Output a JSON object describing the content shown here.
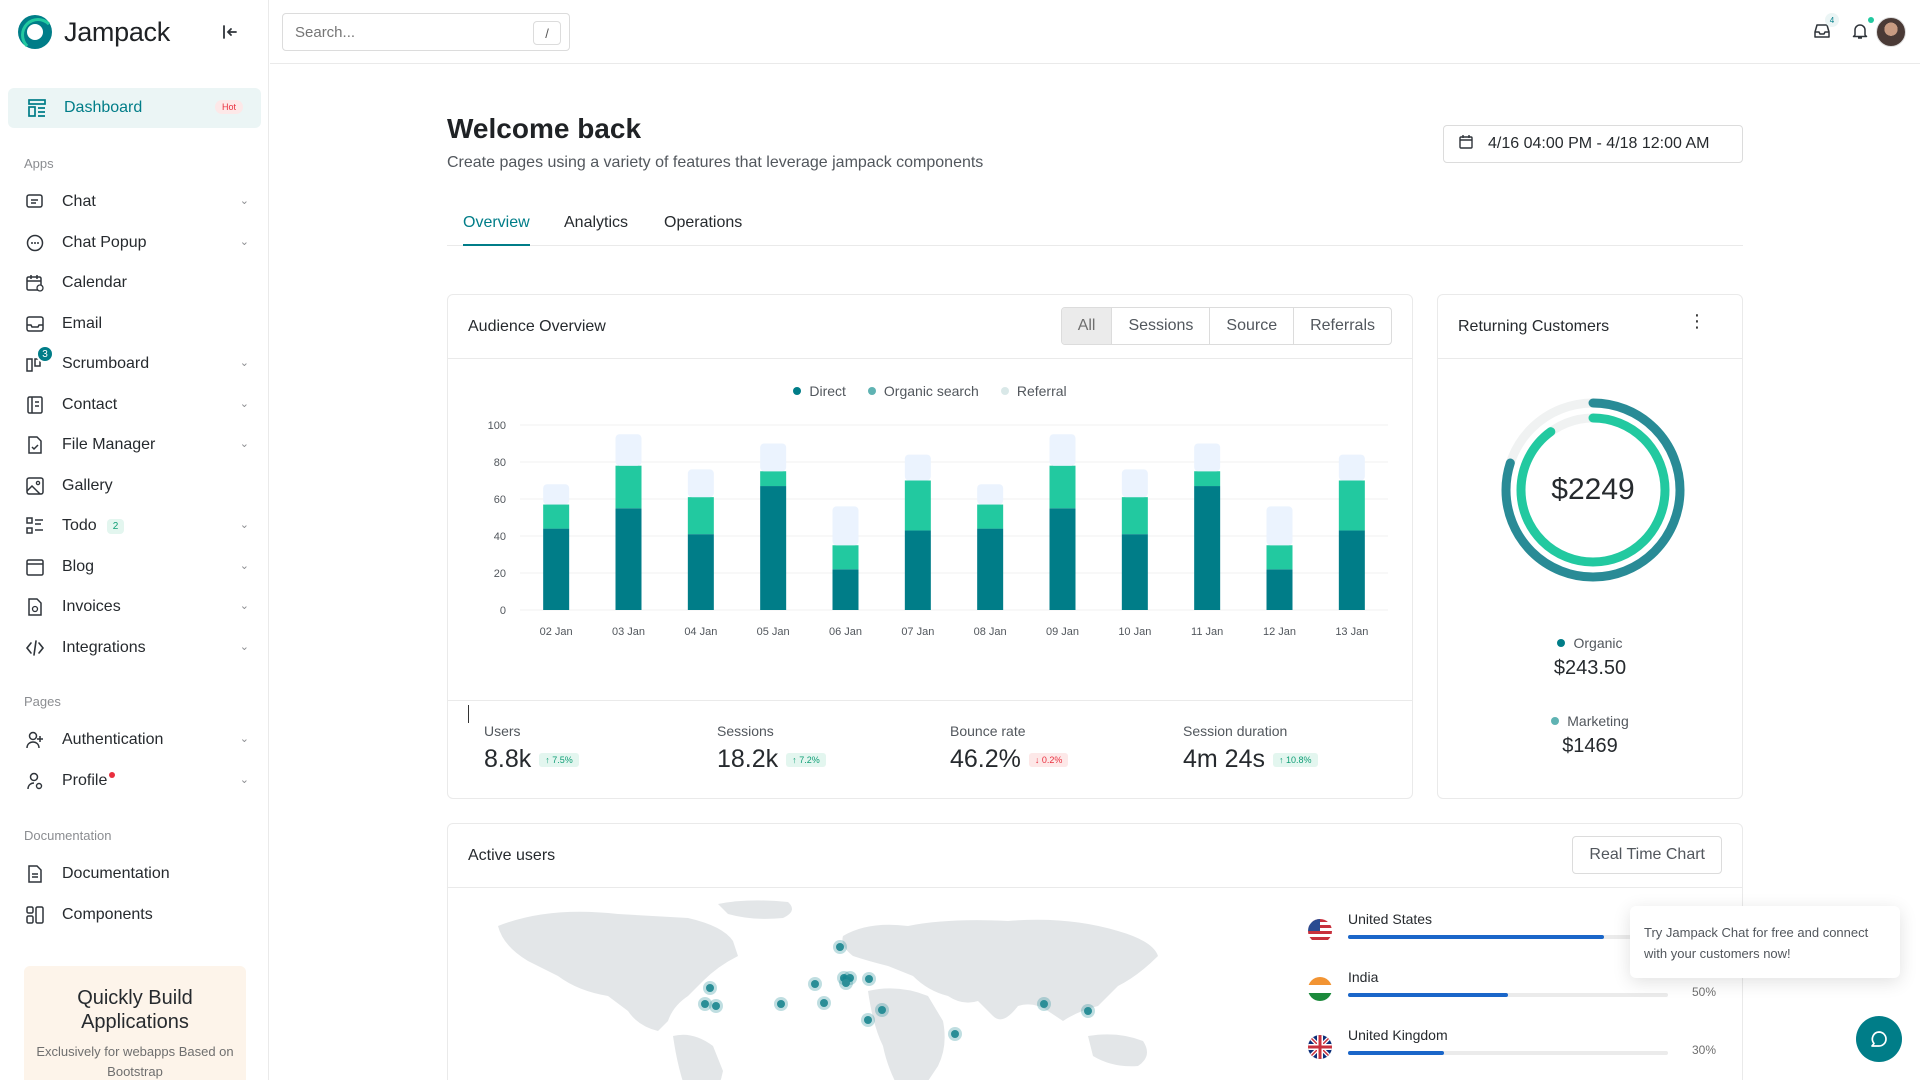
{
  "brand": {
    "name": "Jampack"
  },
  "sidebar": {
    "active": {
      "label": "Dashboard",
      "badge": "Hot"
    },
    "sections": {
      "apps": "Apps",
      "pages": "Pages",
      "documentation": "Documentation"
    },
    "apps": [
      {
        "label": "Chat",
        "icon": "chat-icon",
        "chevron": true
      },
      {
        "label": "Chat Popup",
        "icon": "chat-popup-icon",
        "chevron": true
      },
      {
        "label": "Calendar",
        "icon": "calendar-icon",
        "chevron": false
      },
      {
        "label": "Email",
        "icon": "email-icon",
        "chevron": false
      },
      {
        "label": "Scrumboard",
        "icon": "scrumboard-icon",
        "chevron": true,
        "icon_badge": "3"
      },
      {
        "label": "Contact",
        "icon": "contact-icon",
        "chevron": true
      },
      {
        "label": "File Manager",
        "icon": "file-manager-icon",
        "chevron": true
      },
      {
        "label": "Gallery",
        "icon": "gallery-icon",
        "chevron": false
      },
      {
        "label": "Todo",
        "icon": "todo-icon",
        "chevron": true,
        "count": "2"
      },
      {
        "label": "Blog",
        "icon": "blog-icon",
        "chevron": true
      },
      {
        "label": "Invoices",
        "icon": "invoices-icon",
        "chevron": true
      },
      {
        "label": "Integrations",
        "icon": "integrations-icon",
        "chevron": true
      }
    ],
    "pages": [
      {
        "label": "Authentication",
        "icon": "user-plus-icon",
        "chevron": true
      },
      {
        "label": "Profile",
        "icon": "profile-icon",
        "chevron": true,
        "dot": true
      }
    ],
    "docs": [
      {
        "label": "Documentation",
        "icon": "documentation-icon"
      },
      {
        "label": "Components",
        "icon": "components-icon"
      }
    ],
    "promo": {
      "title": "Quickly Build Applications",
      "subtitle": "Exclusively for webapps Based on Bootstrap"
    }
  },
  "topbar": {
    "search_placeholder": "Search...",
    "search_shortcut": "/",
    "inbox_badge": "4"
  },
  "header": {
    "title": "Welcome back",
    "subtitle": "Create pages using a variety of features that leverage jampack components",
    "date_range": "4/16 04:00 PM - 4/18 12:00 AM"
  },
  "tabs": [
    "Overview",
    "Analytics",
    "Operations"
  ],
  "audience": {
    "title": "Audience Overview",
    "filters": [
      "All",
      "Sessions",
      "Source",
      "Referrals"
    ],
    "legend": [
      {
        "name": "Direct",
        "color": "#007d88"
      },
      {
        "name": "Organic search",
        "color": "#22c9a0"
      },
      {
        "name": "Referral",
        "color": "#ebf3fe"
      }
    ],
    "stats": [
      {
        "label": "Users",
        "value": "8.8k",
        "delta": "7.5%",
        "dir": "up"
      },
      {
        "label": "Sessions",
        "value": "18.2k",
        "delta": "7.2%",
        "dir": "up"
      },
      {
        "label": "Bounce rate",
        "value": "46.2%",
        "delta": "0.2%",
        "dir": "down"
      },
      {
        "label": "Session duration",
        "value": "4m 24s",
        "delta": "10.8%",
        "dir": "up"
      }
    ]
  },
  "chart_data": {
    "type": "bar",
    "stacked": true,
    "categories": [
      "02 Jan",
      "03 Jan",
      "04 Jan",
      "05 Jan",
      "06 Jan",
      "07 Jan",
      "08 Jan",
      "09 Jan",
      "10 Jan",
      "11 Jan",
      "12 Jan",
      "13 Jan"
    ],
    "series": [
      {
        "name": "Direct",
        "values": [
          44,
          55,
          41,
          67,
          22,
          43,
          44,
          55,
          41,
          67,
          22,
          43
        ],
        "color": "#007d88"
      },
      {
        "name": "Organic search",
        "values": [
          13,
          23,
          20,
          8,
          13,
          27,
          13,
          23,
          20,
          8,
          13,
          27
        ],
        "color": "#22c9a0"
      },
      {
        "name": "Referral",
        "values": [
          11,
          17,
          15,
          15,
          21,
          14,
          11,
          17,
          15,
          15,
          21,
          14
        ],
        "color": "#ebf3fe"
      }
    ],
    "yticks": [
      0,
      20,
      40,
      60,
      80,
      100
    ],
    "ylim": [
      0,
      100
    ],
    "grid": true,
    "legend": "top-center"
  },
  "returning": {
    "title": "Returning Customers",
    "total": "$2249",
    "items": [
      {
        "label": "Organic",
        "value": "$243.50",
        "color": "#007d88"
      },
      {
        "label": "Marketing",
        "value": "$1469",
        "color": "#5fb3b3"
      }
    ],
    "rings": [
      {
        "name": "Organic",
        "fraction": 0.8,
        "color": "#22c9a0"
      },
      {
        "name": "Marketing",
        "fraction": 0.9,
        "color": "#298b96"
      }
    ]
  },
  "active_users": {
    "title": "Active users",
    "button": "Real Time Chart",
    "countries": [
      {
        "name": "United States",
        "percent_value": 0.8,
        "flag": "us-flag"
      },
      {
        "name": "India",
        "percent": "50%",
        "percent_value": 0.5,
        "flag": "india-flag"
      },
      {
        "name": "United Kingdom",
        "percent": "30%",
        "percent_value": 0.3,
        "flag": "uk-flag"
      }
    ]
  },
  "chat_popup": {
    "text": "Try Jampack Chat for free and connect with your customers now!"
  }
}
